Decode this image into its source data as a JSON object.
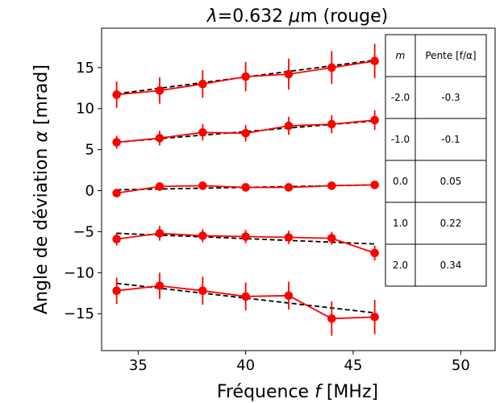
{
  "chart_data": {
    "type": "line",
    "title": "λ=0.632 μm (rouge)",
    "xlabel": "Fréquence f [MHz]",
    "ylabel": "Angle de déviation α [mrad]",
    "xlim": [
      33.3,
      51.6
    ],
    "ylim": [
      -19.5,
      19.8
    ],
    "xticks": [
      35,
      40,
      45,
      50
    ],
    "yticks": [
      -15,
      -10,
      -5,
      0,
      5,
      10,
      15
    ],
    "grid": false,
    "colors": {
      "measured": "#ff0000",
      "fit": "#000000"
    },
    "x": [
      34,
      36,
      38,
      40,
      42,
      44,
      46
    ],
    "series": [
      {
        "m": "2.0",
        "values": [
          11.7,
          12.2,
          13.0,
          13.9,
          14.2,
          15.0,
          15.8
        ],
        "errors": [
          1.6,
          1.6,
          1.7,
          1.8,
          1.9,
          2.0,
          2.1
        ],
        "fit": [
          11.8,
          15.9
        ]
      },
      {
        "m": "1.0",
        "values": [
          5.9,
          6.4,
          7.1,
          7.0,
          7.9,
          8.1,
          8.6
        ],
        "errors": [
          0.8,
          0.9,
          1.0,
          1.0,
          1.1,
          1.1,
          1.2
        ],
        "fit": [
          5.9,
          8.5
        ]
      },
      {
        "m": "0.0",
        "values": [
          -0.3,
          0.5,
          0.6,
          0.4,
          0.4,
          0.6,
          0.7
        ],
        "errors": [
          0.2,
          0.2,
          0.2,
          0.2,
          0.2,
          0.2,
          0.2
        ],
        "fit": [
          0.1,
          0.7
        ]
      },
      {
        "m": "-1.0",
        "values": [
          -5.9,
          -5.2,
          -5.5,
          -5.6,
          -5.7,
          -5.8,
          -7.6
        ],
        "errors": [
          0.8,
          0.9,
          0.8,
          0.8,
          0.8,
          0.8,
          0.9
        ],
        "fit": [
          -5.2,
          -6.5
        ]
      },
      {
        "m": "-2.0",
        "values": [
          -12.2,
          -11.6,
          -12.2,
          -12.9,
          -12.8,
          -15.6,
          -15.4
        ],
        "errors": [
          1.6,
          1.6,
          1.7,
          1.7,
          1.7,
          2.1,
          2.1
        ],
        "fit": [
          -11.3,
          -14.9
        ]
      }
    ],
    "table": {
      "headers": [
        "m",
        "Pente [f/α]"
      ],
      "rows": [
        [
          "-2.0",
          "-0.3"
        ],
        [
          "-1.0",
          "-0.1"
        ],
        [
          "0.0",
          "0.05"
        ],
        [
          "1.0",
          "0.22"
        ],
        [
          "2.0",
          "0.34"
        ]
      ]
    }
  }
}
